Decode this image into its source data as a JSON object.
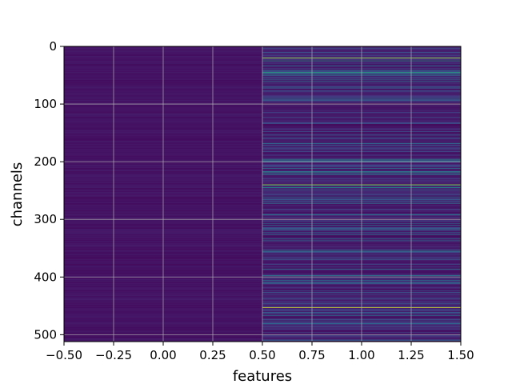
{
  "chart_data": {
    "type": "heatmap",
    "title": "",
    "xlabel": "features",
    "ylabel": "channels",
    "xlim": [
      -0.5,
      1.5
    ],
    "ylim": [
      512,
      0
    ],
    "x_ticks": [
      "−0.50",
      "−0.25",
      "0.00",
      "0.25",
      "0.50",
      "0.75",
      "1.00",
      "1.25",
      "1.50"
    ],
    "x_tick_values": [
      -0.5,
      -0.25,
      0,
      0.25,
      0.5,
      0.75,
      1.0,
      1.25,
      1.5
    ],
    "y_ticks": [
      "0",
      "100",
      "200",
      "300",
      "400",
      "500"
    ],
    "y_tick_values": [
      0,
      100,
      200,
      300,
      400,
      500
    ],
    "grid": true,
    "colormap": "viridis",
    "columns": [
      0,
      1
    ],
    "rows": 512,
    "column_0_level": 0.03,
    "column_1_highlights": [
      {
        "channel": 20,
        "value": 0.9
      },
      {
        "channel": 25,
        "value": 0.55
      },
      {
        "channel": 45,
        "value": 0.6
      },
      {
        "channel": 48,
        "value": 0.5
      },
      {
        "channel": 196,
        "value": 0.45
      },
      {
        "channel": 218,
        "value": 0.55
      },
      {
        "channel": 222,
        "value": 0.5
      },
      {
        "channel": 240,
        "value": 0.85
      },
      {
        "channel": 245,
        "value": 0.5
      },
      {
        "channel": 272,
        "value": 0.45
      },
      {
        "channel": 355,
        "value": 0.5
      },
      {
        "channel": 398,
        "value": 0.45
      },
      {
        "channel": 453,
        "value": 0.95
      }
    ]
  }
}
